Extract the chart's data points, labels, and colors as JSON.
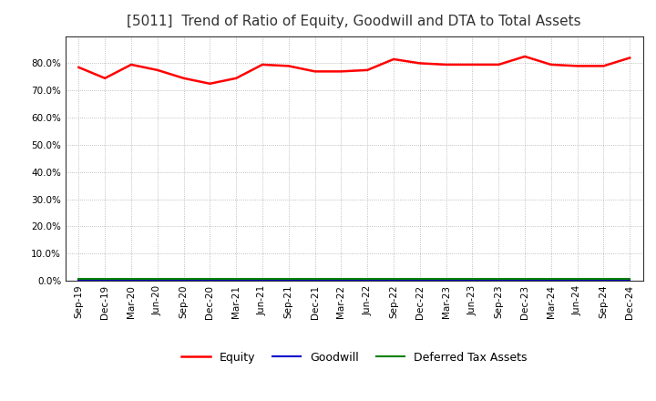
{
  "title": "[5011]  Trend of Ratio of Equity, Goodwill and DTA to Total Assets",
  "x_labels": [
    "Sep-19",
    "Dec-19",
    "Mar-20",
    "Jun-20",
    "Sep-20",
    "Dec-20",
    "Mar-21",
    "Jun-21",
    "Sep-21",
    "Dec-21",
    "Mar-22",
    "Jun-22",
    "Sep-22",
    "Dec-22",
    "Mar-23",
    "Jun-23",
    "Sep-23",
    "Dec-23",
    "Mar-24",
    "Jun-24",
    "Sep-24",
    "Dec-24"
  ],
  "equity": [
    78.5,
    74.5,
    79.5,
    77.5,
    74.5,
    72.5,
    74.5,
    79.5,
    79.0,
    77.0,
    77.0,
    77.5,
    81.5,
    80.0,
    79.5,
    79.5,
    79.5,
    82.5,
    79.5,
    79.0,
    79.0,
    82.0
  ],
  "goodwill": [
    0.3,
    0.3,
    0.3,
    0.3,
    0.3,
    0.3,
    0.3,
    0.3,
    0.3,
    0.3,
    0.3,
    0.3,
    0.3,
    0.3,
    0.3,
    0.3,
    0.3,
    0.3,
    0.3,
    0.3,
    0.3,
    0.3
  ],
  "dta": [
    0.8,
    0.8,
    0.8,
    0.8,
    0.8,
    0.8,
    0.8,
    0.8,
    0.8,
    0.8,
    0.8,
    0.8,
    0.8,
    0.8,
    0.8,
    0.8,
    0.8,
    0.8,
    0.8,
    0.8,
    0.8,
    0.8
  ],
  "equity_color": "#ff0000",
  "goodwill_color": "#0000cc",
  "dta_color": "#008000",
  "ylim_max": 90,
  "yticks": [
    0,
    10,
    20,
    30,
    40,
    50,
    60,
    70,
    80
  ],
  "background_color": "#ffffff",
  "grid_color": "#999999",
  "title_fontsize": 11,
  "tick_fontsize": 7.5,
  "legend_labels": [
    "Equity",
    "Goodwill",
    "Deferred Tax Assets"
  ]
}
